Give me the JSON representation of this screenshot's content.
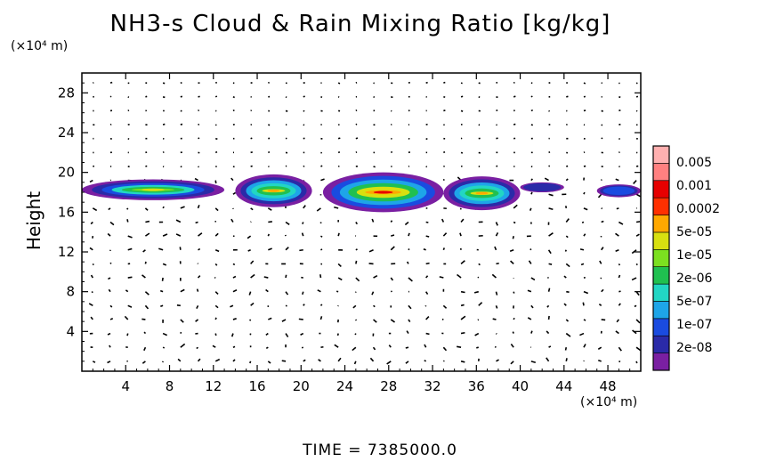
{
  "chart_data": {
    "type": "heatmap",
    "title": "NH3-s Cloud & Rain Mixing Ratio [kg/kg]",
    "ylabel": "Height",
    "y_unit": "(×10⁴ m)",
    "x_unit": "(×10⁴ m)",
    "footer": "TIME = 7385000.0",
    "xlim": [
      0,
      51
    ],
    "ylim": [
      0,
      30
    ],
    "xticks": [
      "4",
      "8",
      "12",
      "16",
      "20",
      "24",
      "28",
      "32",
      "36",
      "40",
      "44",
      "48"
    ],
    "yticks": [
      "4",
      "8",
      "12",
      "16",
      "20",
      "24",
      "28"
    ],
    "xtick_values": [
      4,
      8,
      12,
      16,
      20,
      24,
      28,
      32,
      36,
      40,
      44,
      48
    ],
    "ytick_values": [
      4,
      8,
      12,
      16,
      20,
      24,
      28
    ],
    "colorbar": {
      "labels": [
        "0.005",
        "0.001",
        "0.0002",
        "5e-05",
        "1e-05",
        "2e-06",
        "5e-07",
        "1e-07",
        "2e-08"
      ],
      "colors": [
        "#7a1fa2",
        "#2a2aa8",
        "#1a4be0",
        "#1ea5e8",
        "#22d6c4",
        "#20c050",
        "#7ce020",
        "#d8e010",
        "#ffa800",
        "#ff3000",
        "#e60000",
        "#ff8080",
        "#ffb0b0"
      ]
    },
    "cloud_cells": [
      {
        "x": [
          0,
          13
        ],
        "y": [
          17.2,
          19.3
        ],
        "level": 7
      },
      {
        "x": [
          14,
          21
        ],
        "y": [
          16.5,
          19.8
        ],
        "level": 8
      },
      {
        "x": [
          22,
          33
        ],
        "y": [
          16.0,
          20.0
        ],
        "level": 10
      },
      {
        "x": [
          33,
          40
        ],
        "y": [
          16.2,
          19.6
        ],
        "level": 8
      },
      {
        "x": [
          40,
          44
        ],
        "y": [
          18.0,
          19.0
        ],
        "level": 1
      },
      {
        "x": [
          47,
          51
        ],
        "y": [
          17.5,
          18.8
        ],
        "level": 2
      }
    ],
    "grid": false,
    "legend_position": "right"
  }
}
